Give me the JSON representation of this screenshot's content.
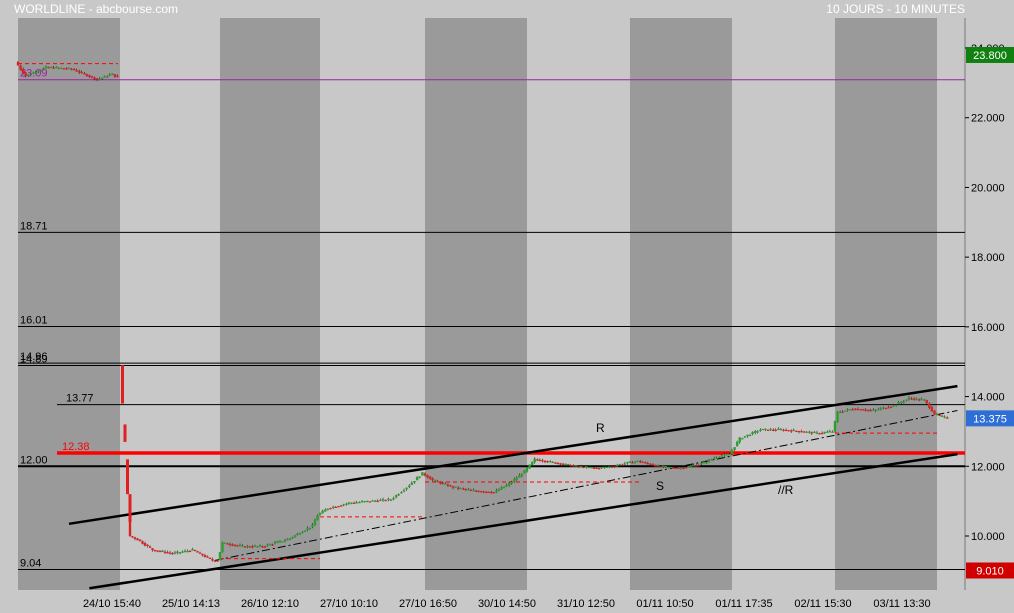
{
  "header": {
    "title": "WORLDLINE - abcbourse.com",
    "period": "10 JOURS - 10 MINUTES"
  },
  "colors": {
    "background": "#c8c8c8",
    "session_shade": "#9a9a9a",
    "candle_up": "#2ca02c",
    "candle_down": "#e02020",
    "level_line": "#000000",
    "support_line": "#ff0000",
    "magenta_line": "#a020a0",
    "tag_high": "#108010",
    "tag_last": "#2e6fd6",
    "tag_low": "#d00000"
  },
  "chart_data": {
    "type": "candlestick",
    "title": "WORLDLINE - abcbourse.com",
    "period": "10 JOURS - 10 MINUTES",
    "ylim": [
      8.4,
      24.4
    ],
    "y_ticks": [
      "24.000",
      "22.000",
      "20.000",
      "18.000",
      "16.000",
      "14.000",
      "12.000",
      "10.000"
    ],
    "x_ticks": [
      "24/10 15:40",
      "25/10 14:13",
      "26/10 12:10",
      "27/10 10:10",
      "27/10 16:50",
      "30/10 14:50",
      "31/10 12:50",
      "01/11 10:50",
      "01/11 17:35",
      "02/11 15:30",
      "03/11 13:30"
    ],
    "sessions": [
      "24/10",
      "25/10",
      "26/10",
      "27/10",
      "30/10",
      "31/10",
      "01/11",
      "02/11",
      "03/11"
    ],
    "price_path": [
      [
        0,
        23.6
      ],
      [
        0.1,
        23.2
      ],
      [
        0.3,
        23.45
      ],
      [
        0.55,
        23.4
      ],
      [
        0.8,
        23.1
      ],
      [
        0.95,
        23.25
      ],
      [
        1.0,
        23.15
      ],
      [
        1.05,
        14.7
      ],
      [
        1.08,
        12.0
      ],
      [
        1.12,
        10.0
      ],
      [
        1.2,
        9.9
      ],
      [
        1.35,
        9.6
      ],
      [
        1.55,
        9.5
      ],
      [
        1.75,
        9.6
      ],
      [
        1.95,
        9.3
      ],
      [
        2.0,
        9.3
      ],
      [
        2.05,
        9.8
      ],
      [
        2.25,
        9.7
      ],
      [
        2.45,
        9.7
      ],
      [
        2.7,
        9.9
      ],
      [
        2.95,
        10.3
      ],
      [
        3.0,
        10.6
      ],
      [
        3.1,
        10.8
      ],
      [
        3.3,
        10.95
      ],
      [
        3.5,
        11.0
      ],
      [
        3.7,
        11.05
      ],
      [
        3.85,
        11.4
      ],
      [
        4.0,
        11.8
      ],
      [
        4.1,
        11.6
      ],
      [
        4.3,
        11.4
      ],
      [
        4.5,
        11.3
      ],
      [
        4.7,
        11.25
      ],
      [
        4.85,
        11.5
      ],
      [
        5.0,
        11.85
      ],
      [
        5.1,
        12.2
      ],
      [
        5.3,
        12.1
      ],
      [
        5.5,
        12.0
      ],
      [
        5.7,
        11.95
      ],
      [
        5.85,
        12.0
      ],
      [
        6.0,
        12.1
      ],
      [
        6.1,
        12.15
      ],
      [
        6.3,
        12.0
      ],
      [
        6.5,
        11.95
      ],
      [
        6.7,
        12.05
      ],
      [
        6.9,
        12.3
      ],
      [
        7.0,
        12.35
      ],
      [
        7.1,
        12.8
      ],
      [
        7.3,
        13.05
      ],
      [
        7.5,
        13.05
      ],
      [
        7.7,
        13.0
      ],
      [
        7.85,
        12.95
      ],
      [
        8.0,
        13.0
      ],
      [
        8.05,
        13.55
      ],
      [
        8.2,
        13.65
      ],
      [
        8.4,
        13.6
      ],
      [
        8.6,
        13.75
      ],
      [
        8.75,
        13.95
      ],
      [
        8.9,
        13.9
      ],
      [
        9.0,
        13.5
      ],
      [
        9.1,
        13.4
      ]
    ],
    "levels": [
      {
        "value": 23.09,
        "label": "23.09",
        "color": "#a020a0"
      },
      {
        "value": 18.71,
        "label": "18.71",
        "color": "#000000"
      },
      {
        "value": 16.01,
        "label": "16.01",
        "color": "#000000"
      },
      {
        "value": 14.96,
        "label": "14.96",
        "color": "#000000"
      },
      {
        "value": 14.89,
        "label": "14.89",
        "color": "#000000"
      },
      {
        "value": 13.77,
        "label": "13.77",
        "color": "#000000"
      },
      {
        "value": 12.38,
        "label": "12.38",
        "color": "#ff0000"
      },
      {
        "value": 12.0,
        "label": "12.00",
        "color": "#000000"
      },
      {
        "value": 9.04,
        "label": "9.04",
        "color": "#000000"
      }
    ],
    "channel": {
      "resistance": [
        [
          0.5,
          10.35
        ],
        [
          9.2,
          14.3
        ]
      ],
      "support": [
        [
          0.7,
          8.5
        ],
        [
          9.2,
          12.35
        ]
      ],
      "midline": [
        [
          1.95,
          9.3
        ],
        [
          9.2,
          13.6
        ]
      ],
      "labels": [
        "R",
        "S",
        "//R"
      ]
    },
    "price_tags": {
      "high": "23.800",
      "last": "13.375",
      "low": "9.010"
    }
  }
}
